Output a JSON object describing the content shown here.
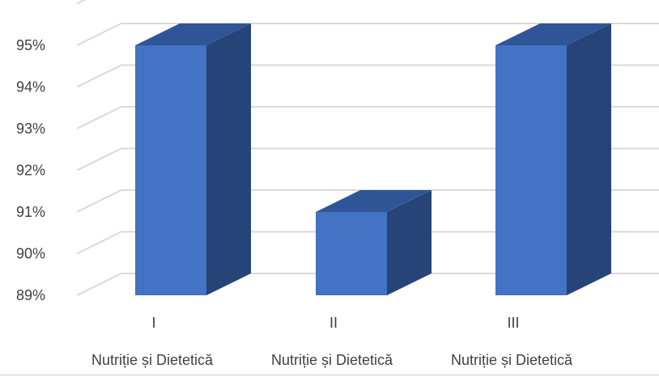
{
  "chart_data": {
    "type": "bar",
    "style": "3d-column",
    "categories": [
      "I",
      "II",
      "III"
    ],
    "category_sublabels": [
      "Nutriție și Dietetică",
      "Nutriție și Dietetică",
      "Nutriție și Dietetică"
    ],
    "values": [
      95,
      91,
      95
    ],
    "y_tick_labels": [
      "89%",
      "90%",
      "91%",
      "92%",
      "93%",
      "94%",
      "95%"
    ],
    "ylim": [
      89,
      96
    ],
    "grid": true,
    "legend": "none",
    "title": "",
    "xlabel": "",
    "ylabel": ""
  },
  "colors": {
    "bar_front": "#4472C4",
    "bar_top": "#2F5597",
    "bar_side": "#264478",
    "gridline": "#d9d9d9",
    "wall": "#d9d9d9"
  }
}
